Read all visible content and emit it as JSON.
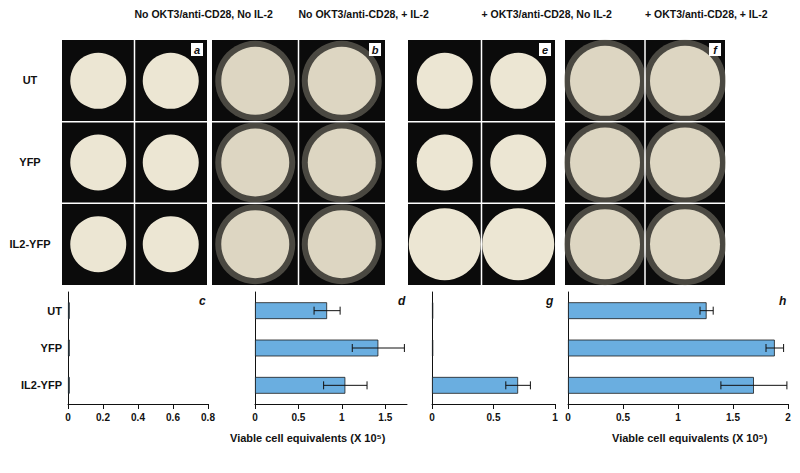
{
  "figure": {
    "column_titles": [
      "No OKT3/anti-CD28, No IL-2",
      "No OKT3/anti-CD28, + IL-2",
      "+ OKT3/anti-CD28, No IL-2",
      "+ OKT3/anti-CD28, + IL-2"
    ],
    "row_labels": [
      "UT",
      "YFP",
      "IL2-YFP"
    ],
    "photo_panels": [
      "a",
      "b",
      "e",
      "f"
    ]
  },
  "chart_data": [
    {
      "type": "bar",
      "title": "c",
      "orientation": "horizontal",
      "categories": [
        "UT",
        "YFP",
        "IL2-YFP"
      ],
      "values": [
        0.01,
        0.01,
        0.01
      ],
      "color": "#6aaee0",
      "xlim": [
        0,
        0.8
      ],
      "xticks": [
        0,
        0.2,
        0.4,
        0.6,
        0.8
      ],
      "xlabel": "Viable cell equivalents (X 10⁵)"
    },
    {
      "type": "bar",
      "title": "d",
      "orientation": "horizontal",
      "categories": [
        "UT",
        "YFP",
        "IL2-YFP"
      ],
      "values": [
        0.83,
        1.42,
        1.04
      ],
      "errors": [
        0.15,
        0.3,
        0.25
      ],
      "color": "#6aaee0",
      "xlim": [
        0,
        1.75
      ],
      "xticks": [
        0,
        0.5,
        1,
        1.5
      ],
      "tick_labels": "x"
    },
    {
      "type": "bar",
      "title": "g",
      "orientation": "horizontal",
      "categories": [
        "UT",
        "YFP",
        "IL2-YFP"
      ],
      "values": [
        0.01,
        0.01,
        0.7
      ],
      "errors": [
        null,
        null,
        0.1
      ],
      "color": "#6aaee0",
      "xlim": [
        0,
        1
      ],
      "xticks": [
        0,
        0.5,
        1
      ],
      "tick_labels": "x",
      "xlabel": "Viable cell equivalents (X 10⁵)"
    },
    {
      "type": "bar",
      "title": "h",
      "orientation": "horizontal",
      "categories": [
        "UT",
        "YFP",
        "IL2-YFP"
      ],
      "values": [
        1.26,
        1.88,
        1.69
      ],
      "errors": [
        0.06,
        0.08,
        0.3
      ],
      "color": "#6aaee0",
      "xlim": [
        0,
        2
      ],
      "xticks": [
        0,
        0.5,
        1,
        1.5,
        2
      ],
      "tick_labels": "x"
    }
  ]
}
